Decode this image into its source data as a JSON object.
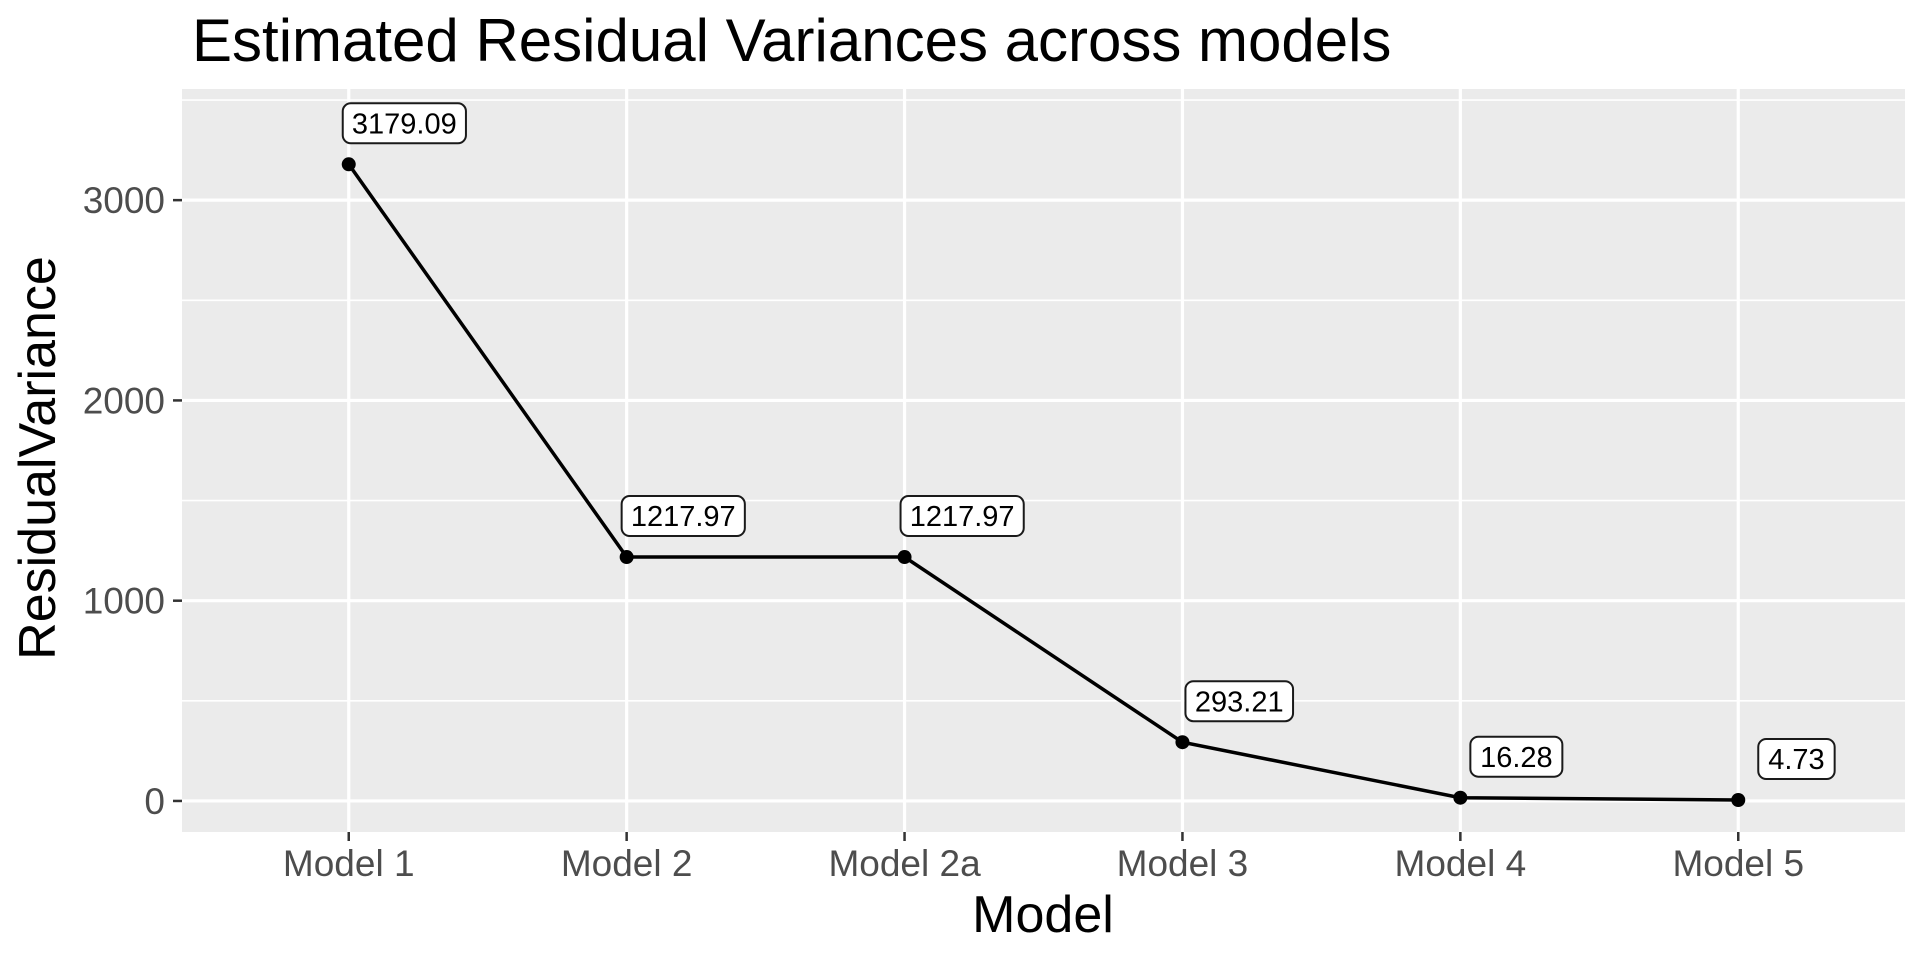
{
  "chart_data": {
    "type": "line",
    "title": "Estimated Residual Variances across models",
    "xlabel": "Model",
    "ylabel": "ResidualVariance",
    "categories": [
      "Model 1",
      "Model 2",
      "Model 2a",
      "Model 3",
      "Model 4",
      "Model 5"
    ],
    "values": [
      3179.09,
      1217.97,
      1217.97,
      293.21,
      16.28,
      4.73
    ],
    "point_labels": [
      "3179.09",
      "1217.97",
      "1217.97",
      "293.21",
      "16.28",
      "4.73"
    ],
    "y_ticks": [
      0,
      1000,
      2000,
      3000
    ],
    "y_tick_labels": [
      "0",
      "1000",
      "2000",
      "3000"
    ],
    "y_minor_ticks": [
      500,
      1500,
      2500,
      3500
    ],
    "ylim": [
      -155,
      3555
    ],
    "grid": "major-and-minor-horizontal, major-vertical-at-categories",
    "legend": "none",
    "label_dx": [
      -6,
      -5,
      -4,
      3,
      10,
      20
    ],
    "colors": {
      "panel_bg": "#EBEBEB",
      "gridline": "#FFFFFF",
      "line": "#000000",
      "point": "#000000",
      "tick_mark": "#333333",
      "tick_label": "#4D4D4D",
      "title_text": "#000000",
      "axis_title_text": "#000000",
      "label_box_bg": "#FFFFFF",
      "label_box_border": "#1A1A1A",
      "label_text": "#000000"
    }
  }
}
